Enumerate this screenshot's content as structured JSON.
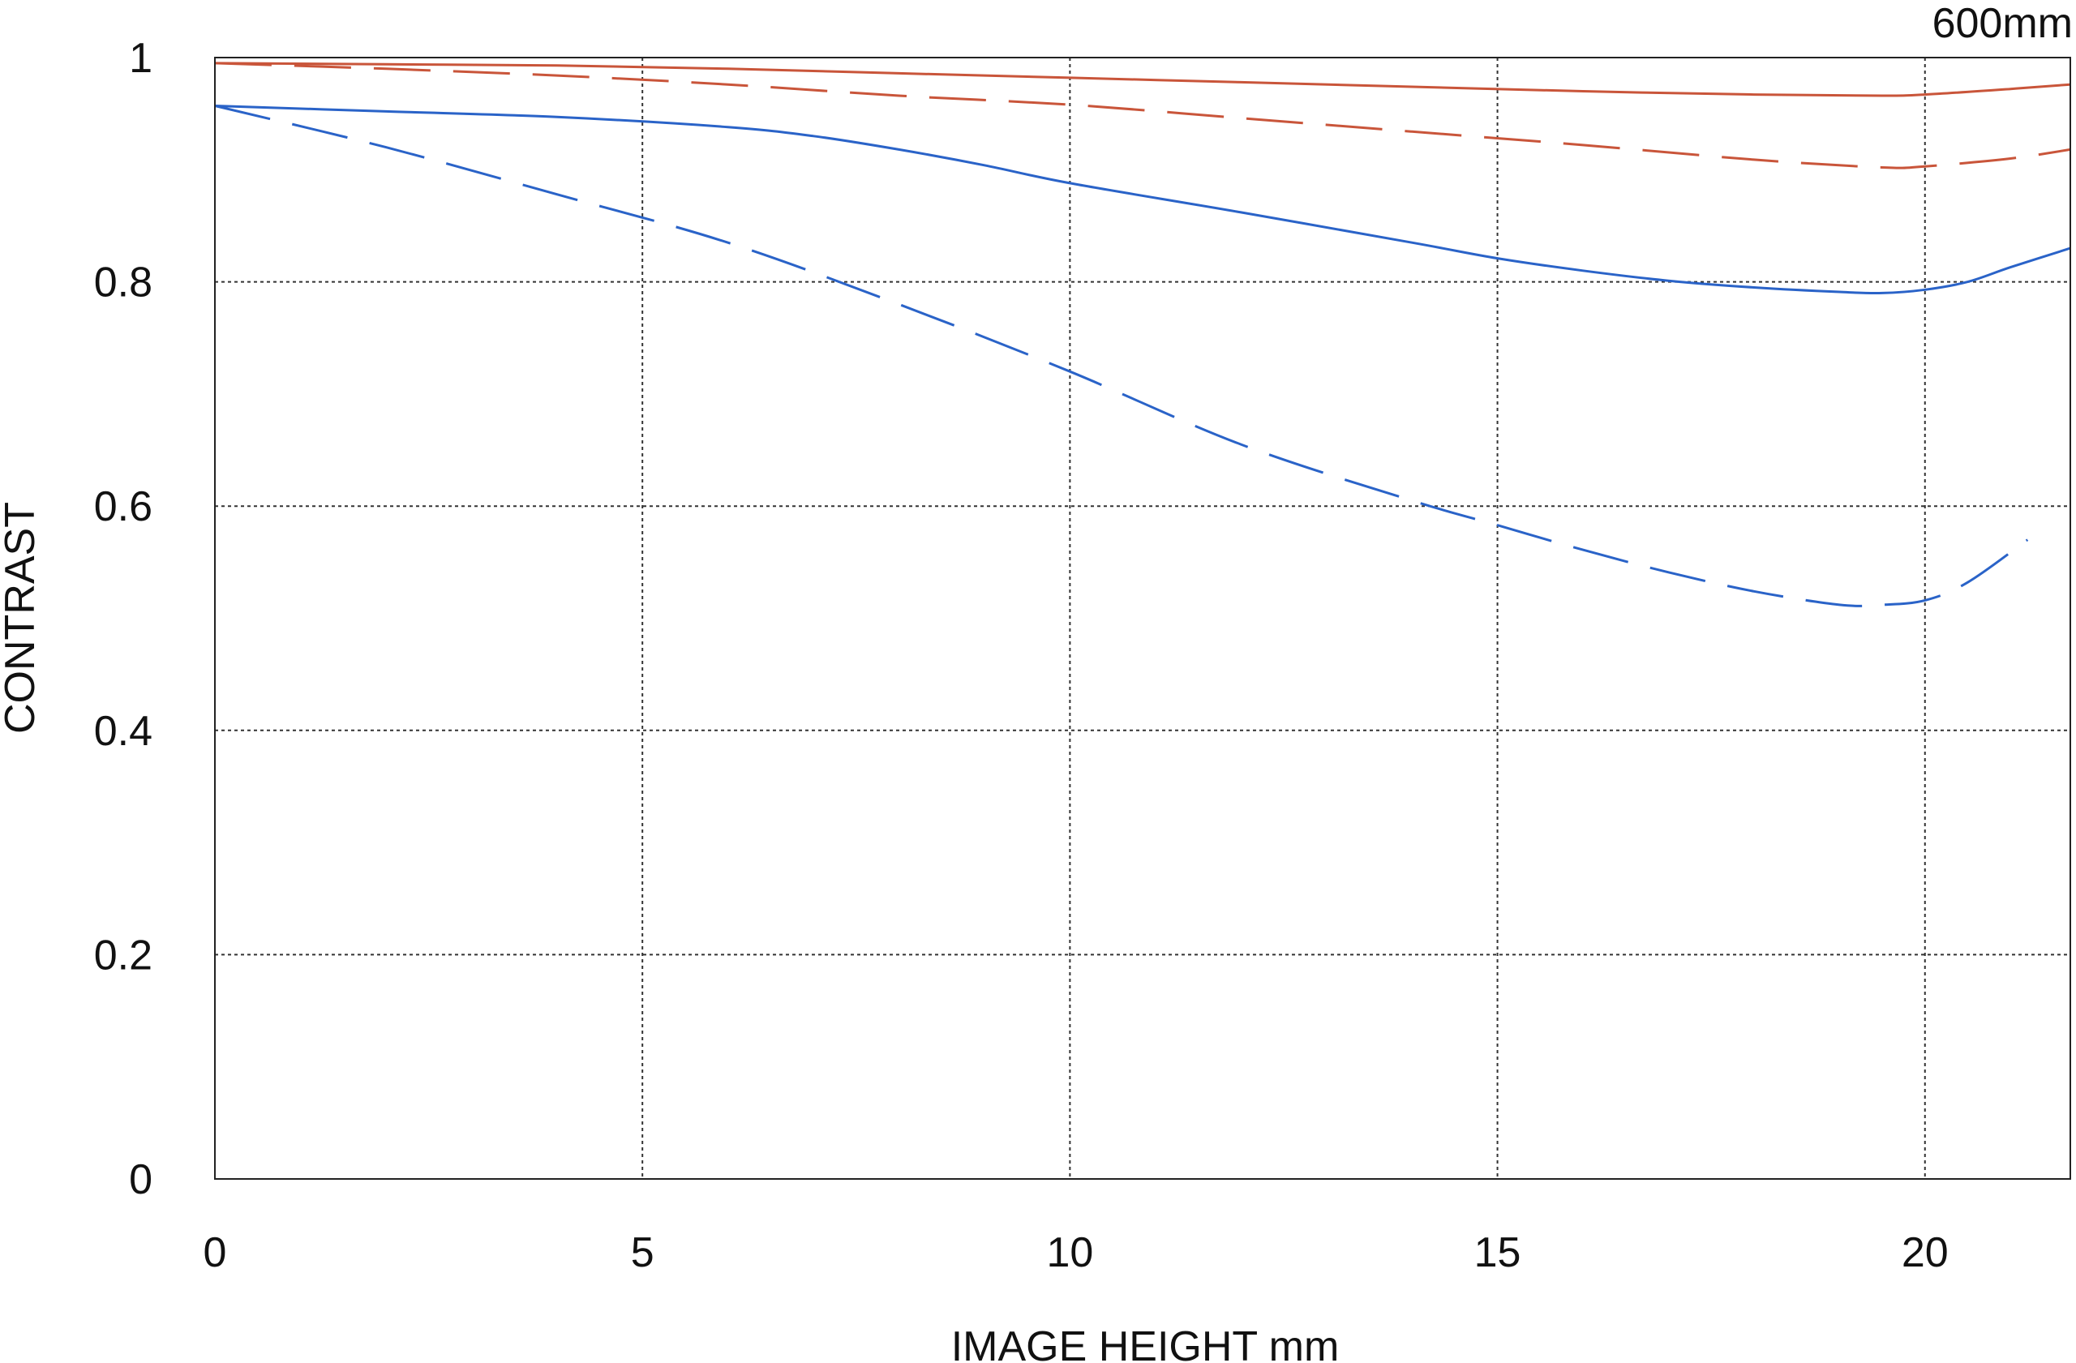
{
  "chart_data": {
    "type": "line",
    "title": "",
    "corner_label": "600mm",
    "xlabel": "IMAGE HEIGHT  mm",
    "ylabel": "CONTRAST",
    "xlim": [
      0,
      21.7
    ],
    "ylim": [
      0,
      1
    ],
    "x_ticks": [
      0,
      5,
      10,
      15,
      20
    ],
    "x_tick_labels": [
      "0",
      "5",
      "10",
      "15",
      "20"
    ],
    "y_ticks": [
      0,
      0.2,
      0.4,
      0.6,
      0.8,
      1
    ],
    "y_tick_labels": [
      "0",
      "0.2",
      "0.4",
      "0.6",
      "0.8",
      "1"
    ],
    "grid": true,
    "legend": "none",
    "series": [
      {
        "color": "#c9553a",
        "style": "solid",
        "x": [
          0,
          2,
          4,
          6,
          8,
          10,
          12,
          14,
          16,
          18,
          19.5,
          20,
          21,
          21.7
        ],
        "y": [
          0.995,
          0.994,
          0.993,
          0.99,
          0.986,
          0.982,
          0.978,
          0.974,
          0.97,
          0.967,
          0.966,
          0.967,
          0.972,
          0.976
        ]
      },
      {
        "color": "#c9553a",
        "style": "dashed",
        "x": [
          0,
          2,
          4,
          6,
          8,
          10,
          12,
          14,
          16,
          18,
          19.5,
          20,
          21,
          21.7
        ],
        "y": [
          0.995,
          0.99,
          0.984,
          0.976,
          0.966,
          0.958,
          0.946,
          0.934,
          0.922,
          0.909,
          0.902,
          0.903,
          0.91,
          0.918
        ]
      },
      {
        "color": "#2a63c8",
        "style": "solid",
        "x": [
          0,
          2,
          4,
          6,
          7,
          8,
          9,
          10,
          12,
          14,
          15,
          16,
          17,
          18,
          19,
          19.5,
          20,
          20.5,
          21,
          21.7
        ],
        "y": [
          0.957,
          0.952,
          0.947,
          0.938,
          0.93,
          0.918,
          0.904,
          0.888,
          0.862,
          0.835,
          0.821,
          0.81,
          0.801,
          0.795,
          0.791,
          0.79,
          0.793,
          0.8,
          0.813,
          0.83
        ]
      },
      {
        "color": "#2a63c8",
        "style": "dashed",
        "x": [
          0,
          2,
          4,
          6,
          8,
          10,
          12,
          14,
          15,
          16,
          17,
          18,
          19,
          19.5,
          20,
          20.5,
          21.2
        ],
        "y": [
          0.957,
          0.92,
          0.878,
          0.835,
          0.78,
          0.72,
          0.655,
          0.605,
          0.583,
          0.561,
          0.541,
          0.524,
          0.512,
          0.512,
          0.516,
          0.532,
          0.57
        ]
      }
    ]
  }
}
